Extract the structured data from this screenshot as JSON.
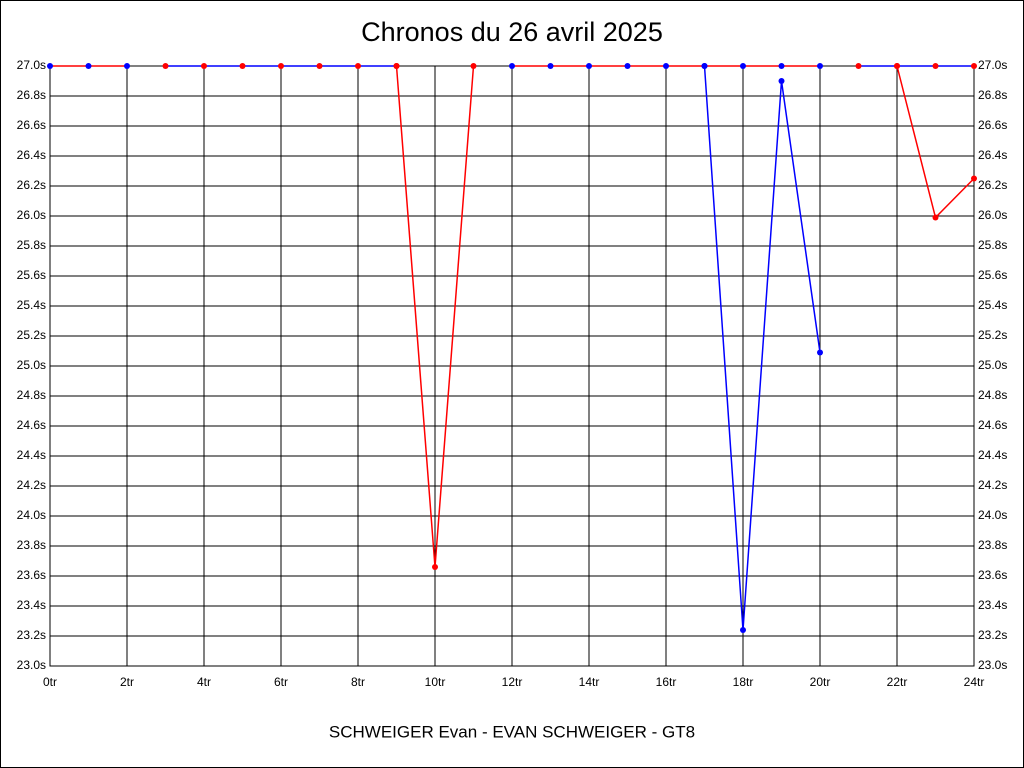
{
  "chart_data": {
    "type": "line",
    "title": "Chronos du 26 avril 2025",
    "x_label": "SCHWEIGER Evan - EVAN SCHWEIGER - GT8",
    "xlim": [
      0,
      24
    ],
    "ylim": [
      23.0,
      27.0
    ],
    "grid": true,
    "xticks": [
      {
        "value": 0,
        "label": "0tr"
      },
      {
        "value": 2,
        "label": "2tr"
      },
      {
        "value": 4,
        "label": "4tr"
      },
      {
        "value": 6,
        "label": "6tr"
      },
      {
        "value": 8,
        "label": "8tr"
      },
      {
        "value": 10,
        "label": "10tr"
      },
      {
        "value": 12,
        "label": "12tr"
      },
      {
        "value": 14,
        "label": "14tr"
      },
      {
        "value": 16,
        "label": "16tr"
      },
      {
        "value": 18,
        "label": "18tr"
      },
      {
        "value": 20,
        "label": "20tr"
      },
      {
        "value": 22,
        "label": "22tr"
      },
      {
        "value": 24,
        "label": "24tr"
      }
    ],
    "yticks": [
      {
        "value": 23.0,
        "label": "23.0s"
      },
      {
        "value": 23.2,
        "label": "23.2s"
      },
      {
        "value": 23.4,
        "label": "23.4s"
      },
      {
        "value": 23.6,
        "label": "23.6s"
      },
      {
        "value": 23.8,
        "label": "23.8s"
      },
      {
        "value": 24.0,
        "label": "24.0s"
      },
      {
        "value": 24.2,
        "label": "24.2s"
      },
      {
        "value": 24.4,
        "label": "24.4s"
      },
      {
        "value": 24.6,
        "label": "24.6s"
      },
      {
        "value": 24.8,
        "label": "24.8s"
      },
      {
        "value": 25.0,
        "label": "25.0s"
      },
      {
        "value": 25.2,
        "label": "25.2s"
      },
      {
        "value": 25.4,
        "label": "25.4s"
      },
      {
        "value": 25.6,
        "label": "25.6s"
      },
      {
        "value": 25.8,
        "label": "25.8s"
      },
      {
        "value": 26.0,
        "label": "26.0s"
      },
      {
        "value": 26.2,
        "label": "26.2s"
      },
      {
        "value": 26.4,
        "label": "26.4s"
      },
      {
        "value": 26.6,
        "label": "26.6s"
      },
      {
        "value": 26.8,
        "label": "26.8s"
      },
      {
        "value": 27.0,
        "label": "27.0s"
      }
    ],
    "series": [
      {
        "color": "#ff0000",
        "marker_color": "#0000ff",
        "x": [
          0,
          1,
          2
        ],
        "values": [
          27.0,
          27.0,
          27.0
        ]
      },
      {
        "color": "#ff0000",
        "marker_color": "#ff0000",
        "x": [
          9,
          10,
          11
        ],
        "values": [
          27.0,
          23.66,
          27.0
        ]
      },
      {
        "color": "#ff0000",
        "marker_color": "#0000ff",
        "x": [
          12,
          13,
          14,
          15,
          16,
          17,
          18,
          19,
          20
        ],
        "values": [
          27.0,
          27.0,
          27.0,
          27.0,
          27.0,
          27.0,
          27.0,
          27.0,
          27.0
        ]
      },
      {
        "color": "#0000ff",
        "marker_color": "#ff0000",
        "x": [
          3,
          4,
          5,
          6,
          7,
          8,
          9
        ],
        "values": [
          27.0,
          27.0,
          27.0,
          27.0,
          27.0,
          27.0,
          27.0
        ]
      },
      {
        "color": "#0000ff",
        "marker_color": "#0000ff",
        "x": [
          17,
          18,
          19,
          20
        ],
        "values": [
          27.0,
          23.24,
          26.9,
          25.09
        ]
      },
      {
        "color": "#0000ff",
        "marker_color": "#ff0000",
        "x": [
          21,
          22,
          23,
          24
        ],
        "values": [
          27.0,
          27.0,
          27.0,
          27.0
        ]
      },
      {
        "color": "#ff0000",
        "marker_color": "#ff0000",
        "x": [
          22,
          23,
          24
        ],
        "values": [
          27.0,
          25.99,
          26.25
        ]
      }
    ]
  }
}
